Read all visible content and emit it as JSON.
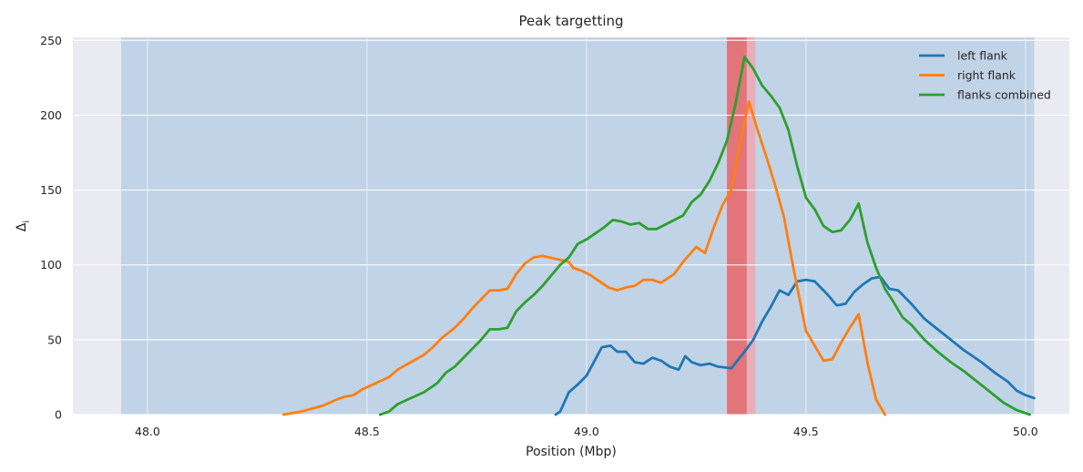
{
  "chart_data": {
    "type": "line",
    "title": "Peak targetting",
    "xlabel": "Position (Mbp)",
    "ylabel": "Δi",
    "xlim": [
      47.83,
      50.1
    ],
    "ylim": [
      0,
      252
    ],
    "xticks": [
      48.0,
      48.5,
      49.0,
      49.5,
      50.0
    ],
    "yticks": [
      0,
      50,
      100,
      150,
      200,
      250
    ],
    "grid": true,
    "legend_position": "top-right",
    "background_color": "#eaeaf2",
    "shaded_regions": [
      {
        "x_start": 47.94,
        "x_end": 50.02,
        "color": "#9fc0df",
        "opacity": 0.55
      },
      {
        "x_start": 49.32,
        "x_end": 49.385,
        "color": "#f4a0a8",
        "opacity": 0.75
      },
      {
        "x_start": 49.32,
        "x_end": 49.365,
        "color": "#dc3c3c",
        "opacity": 0.5
      }
    ],
    "series": [
      {
        "name": "left flank",
        "color": "#1f77b4",
        "points": [
          [
            48.93,
            0
          ],
          [
            48.94,
            2
          ],
          [
            48.96,
            15
          ],
          [
            48.98,
            20
          ],
          [
            49.0,
            26
          ],
          [
            49.015,
            34
          ],
          [
            49.035,
            45
          ],
          [
            49.055,
            46
          ],
          [
            49.07,
            42
          ],
          [
            49.09,
            42
          ],
          [
            49.11,
            35
          ],
          [
            49.13,
            34
          ],
          [
            49.15,
            38
          ],
          [
            49.17,
            36
          ],
          [
            49.19,
            32
          ],
          [
            49.21,
            30
          ],
          [
            49.225,
            39
          ],
          [
            49.24,
            35
          ],
          [
            49.26,
            33
          ],
          [
            49.28,
            34
          ],
          [
            49.3,
            32
          ],
          [
            49.33,
            31
          ],
          [
            49.36,
            42
          ],
          [
            49.38,
            50
          ],
          [
            49.4,
            62
          ],
          [
            49.42,
            72
          ],
          [
            49.44,
            83
          ],
          [
            49.46,
            80
          ],
          [
            49.48,
            89
          ],
          [
            49.5,
            90
          ],
          [
            49.52,
            89
          ],
          [
            49.55,
            80
          ],
          [
            49.57,
            73
          ],
          [
            49.59,
            74
          ],
          [
            49.61,
            82
          ],
          [
            49.63,
            87
          ],
          [
            49.65,
            91
          ],
          [
            49.67,
            92
          ],
          [
            49.69,
            84
          ],
          [
            49.71,
            83
          ],
          [
            49.74,
            74
          ],
          [
            49.77,
            64
          ],
          [
            49.8,
            57
          ],
          [
            49.83,
            50
          ],
          [
            49.86,
            43
          ],
          [
            49.9,
            35
          ],
          [
            49.93,
            28
          ],
          [
            49.96,
            22
          ],
          [
            49.98,
            16
          ],
          [
            50.0,
            13
          ],
          [
            50.02,
            11
          ]
        ]
      },
      {
        "name": "right flank",
        "color": "#ff7f0e",
        "points": [
          [
            48.31,
            0
          ],
          [
            48.35,
            2
          ],
          [
            48.4,
            6
          ],
          [
            48.43,
            10
          ],
          [
            48.45,
            12
          ],
          [
            48.47,
            13
          ],
          [
            48.49,
            17
          ],
          [
            48.52,
            21
          ],
          [
            48.55,
            25
          ],
          [
            48.57,
            30
          ],
          [
            48.6,
            35
          ],
          [
            48.63,
            40
          ],
          [
            48.65,
            45
          ],
          [
            48.67,
            51
          ],
          [
            48.7,
            58
          ],
          [
            48.72,
            64
          ],
          [
            48.74,
            71
          ],
          [
            48.76,
            77
          ],
          [
            48.78,
            83
          ],
          [
            48.8,
            83
          ],
          [
            48.82,
            84
          ],
          [
            48.84,
            94
          ],
          [
            48.86,
            101
          ],
          [
            48.88,
            105
          ],
          [
            48.9,
            106
          ],
          [
            48.93,
            104
          ],
          [
            48.96,
            102
          ],
          [
            48.97,
            98
          ],
          [
            48.99,
            96
          ],
          [
            49.01,
            93
          ],
          [
            49.03,
            89
          ],
          [
            49.05,
            85
          ],
          [
            49.07,
            83
          ],
          [
            49.09,
            85
          ],
          [
            49.11,
            86
          ],
          [
            49.13,
            90
          ],
          [
            49.15,
            90
          ],
          [
            49.17,
            88
          ],
          [
            49.2,
            94
          ],
          [
            49.22,
            102
          ],
          [
            49.25,
            112
          ],
          [
            49.27,
            108
          ],
          [
            49.29,
            125
          ],
          [
            49.31,
            140
          ],
          [
            49.33,
            150
          ],
          [
            49.35,
            182
          ],
          [
            49.37,
            209
          ],
          [
            49.39,
            190
          ],
          [
            49.41,
            172
          ],
          [
            49.43,
            153
          ],
          [
            49.45,
            132
          ],
          [
            49.47,
            100
          ],
          [
            49.5,
            56
          ],
          [
            49.52,
            46
          ],
          [
            49.54,
            36
          ],
          [
            49.56,
            37
          ],
          [
            49.58,
            48
          ],
          [
            49.6,
            58
          ],
          [
            49.62,
            67
          ],
          [
            49.64,
            35
          ],
          [
            49.66,
            10
          ],
          [
            49.68,
            0
          ]
        ]
      },
      {
        "name": "flanks combined",
        "color": "#2ca02c",
        "points": [
          [
            48.53,
            0
          ],
          [
            48.55,
            2
          ],
          [
            48.57,
            7
          ],
          [
            48.6,
            11
          ],
          [
            48.63,
            15
          ],
          [
            48.66,
            21
          ],
          [
            48.68,
            28
          ],
          [
            48.7,
            32
          ],
          [
            48.72,
            38
          ],
          [
            48.74,
            44
          ],
          [
            48.76,
            50
          ],
          [
            48.78,
            57
          ],
          [
            48.8,
            57
          ],
          [
            48.82,
            58
          ],
          [
            48.84,
            69
          ],
          [
            48.86,
            75
          ],
          [
            48.88,
            80
          ],
          [
            48.9,
            86
          ],
          [
            48.92,
            93
          ],
          [
            48.94,
            100
          ],
          [
            48.96,
            105
          ],
          [
            48.98,
            114
          ],
          [
            49.0,
            117
          ],
          [
            49.02,
            121
          ],
          [
            49.04,
            125
          ],
          [
            49.06,
            130
          ],
          [
            49.08,
            129
          ],
          [
            49.1,
            127
          ],
          [
            49.12,
            128
          ],
          [
            49.14,
            124
          ],
          [
            49.16,
            124
          ],
          [
            49.18,
            127
          ],
          [
            49.2,
            130
          ],
          [
            49.22,
            133
          ],
          [
            49.24,
            142
          ],
          [
            49.26,
            147
          ],
          [
            49.28,
            156
          ],
          [
            49.3,
            168
          ],
          [
            49.32,
            183
          ],
          [
            49.34,
            208
          ],
          [
            49.36,
            239
          ],
          [
            49.38,
            231
          ],
          [
            49.4,
            220
          ],
          [
            49.42,
            213
          ],
          [
            49.44,
            205
          ],
          [
            49.46,
            190
          ],
          [
            49.48,
            166
          ],
          [
            49.5,
            145
          ],
          [
            49.52,
            137
          ],
          [
            49.54,
            126
          ],
          [
            49.56,
            122
          ],
          [
            49.58,
            123
          ],
          [
            49.6,
            130
          ],
          [
            49.62,
            141
          ],
          [
            49.64,
            115
          ],
          [
            49.66,
            98
          ],
          [
            49.68,
            84
          ],
          [
            49.7,
            75
          ],
          [
            49.72,
            65
          ],
          [
            49.74,
            60
          ],
          [
            49.77,
            50
          ],
          [
            49.8,
            42
          ],
          [
            49.83,
            35
          ],
          [
            49.86,
            29
          ],
          [
            49.89,
            22
          ],
          [
            49.92,
            15
          ],
          [
            49.95,
            8
          ],
          [
            49.98,
            3
          ],
          [
            50.01,
            0
          ]
        ]
      }
    ]
  }
}
